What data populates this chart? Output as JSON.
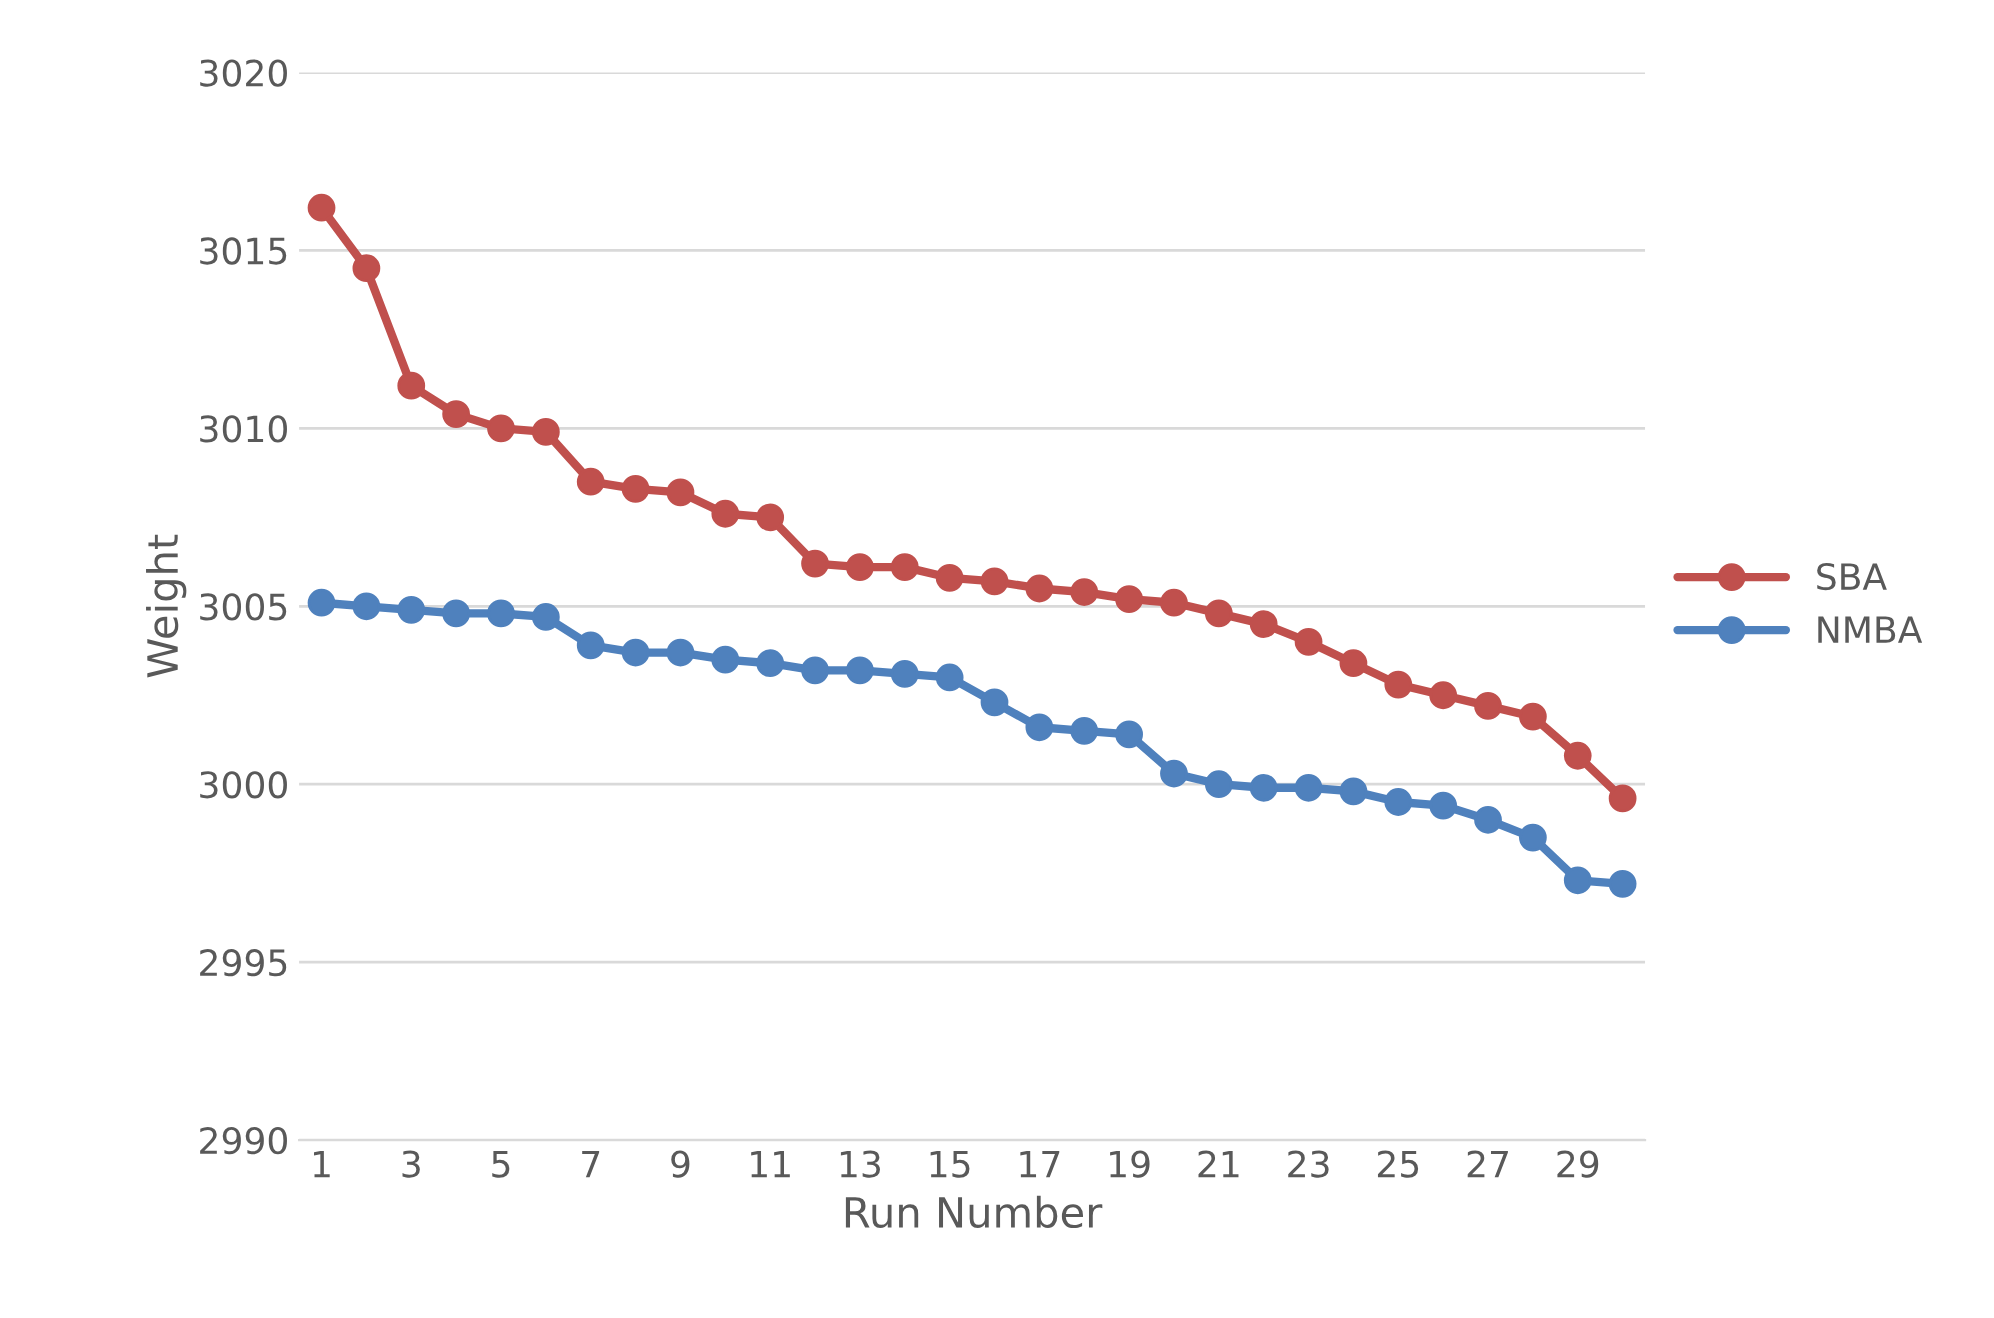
{
  "chart_data": {
    "type": "line",
    "xlabel": "Run Number",
    "ylabel": "Weight",
    "categories": [
      "1",
      null,
      "3",
      null,
      "5",
      null,
      "7",
      null,
      "9",
      null,
      "11",
      null,
      "13",
      null,
      "15",
      null,
      "17",
      null,
      "19",
      null,
      "21",
      null,
      "23",
      null,
      "25",
      null,
      "27",
      null,
      "29",
      null
    ],
    "series": [
      {
        "name": "SBA",
        "color": "#c0504d",
        "values": [
          3016.2,
          3014.5,
          3011.2,
          3010.4,
          3010.0,
          3009.9,
          3008.5,
          3008.3,
          3008.2,
          3007.6,
          3007.5,
          3006.2,
          3006.1,
          3006.1,
          3005.8,
          3005.7,
          3005.5,
          3005.4,
          3005.2,
          3005.1,
          3004.8,
          3004.5,
          3004.0,
          3003.4,
          3002.8,
          3002.5,
          3002.2,
          3001.9,
          3000.8,
          2999.6
        ]
      },
      {
        "name": "NMBA",
        "color": "#4f81bd",
        "values": [
          3005.1,
          3005.0,
          3004.9,
          3004.8,
          3004.8,
          3004.7,
          3003.9,
          3003.7,
          3003.7,
          3003.5,
          3003.4,
          3003.2,
          3003.2,
          3003.1,
          3003.0,
          3002.3,
          3001.6,
          3001.5,
          3001.4,
          3000.3,
          3000.0,
          2999.9,
          2999.9,
          2999.8,
          2999.5,
          2999.4,
          2999.0,
          2998.5,
          2997.3,
          2997.2
        ]
      }
    ],
    "ylim": [
      2990,
      3020
    ],
    "yticks": [
      2990,
      2995,
      3000,
      3005,
      3010,
      3015,
      3020
    ],
    "grid": "y",
    "legend": "right",
    "marker": "circle",
    "line_style": "solid"
  }
}
